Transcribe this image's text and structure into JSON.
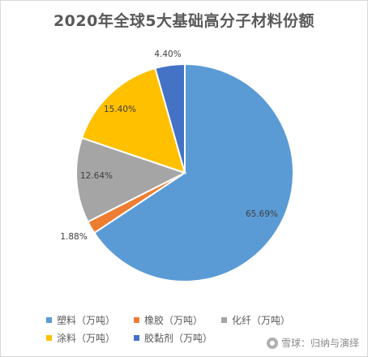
{
  "chart_data": {
    "type": "pie",
    "title": "2020年全球5大基础高分子材料份额",
    "categories": [
      "塑料（万吨）",
      "橡胶（万吨）",
      "化纤（万吨）",
      "涂料（万吨）",
      "胶黏剂（万吨）"
    ],
    "values": [
      65.69,
      1.88,
      12.64,
      15.4,
      4.4
    ],
    "data_labels": [
      "65.69%",
      "1.88%",
      "12.64%",
      "15.40%",
      "4.40%"
    ],
    "colors": [
      "#5b9bd5",
      "#ed7d31",
      "#a5a5a5",
      "#ffc000",
      "#4472c4"
    ],
    "legend_position": "bottom",
    "start_angle": "12 o'clock",
    "direction": "clockwise"
  },
  "watermark": {
    "text": "雪球：归纳与演绎",
    "icon": "snowball-logo-icon"
  }
}
